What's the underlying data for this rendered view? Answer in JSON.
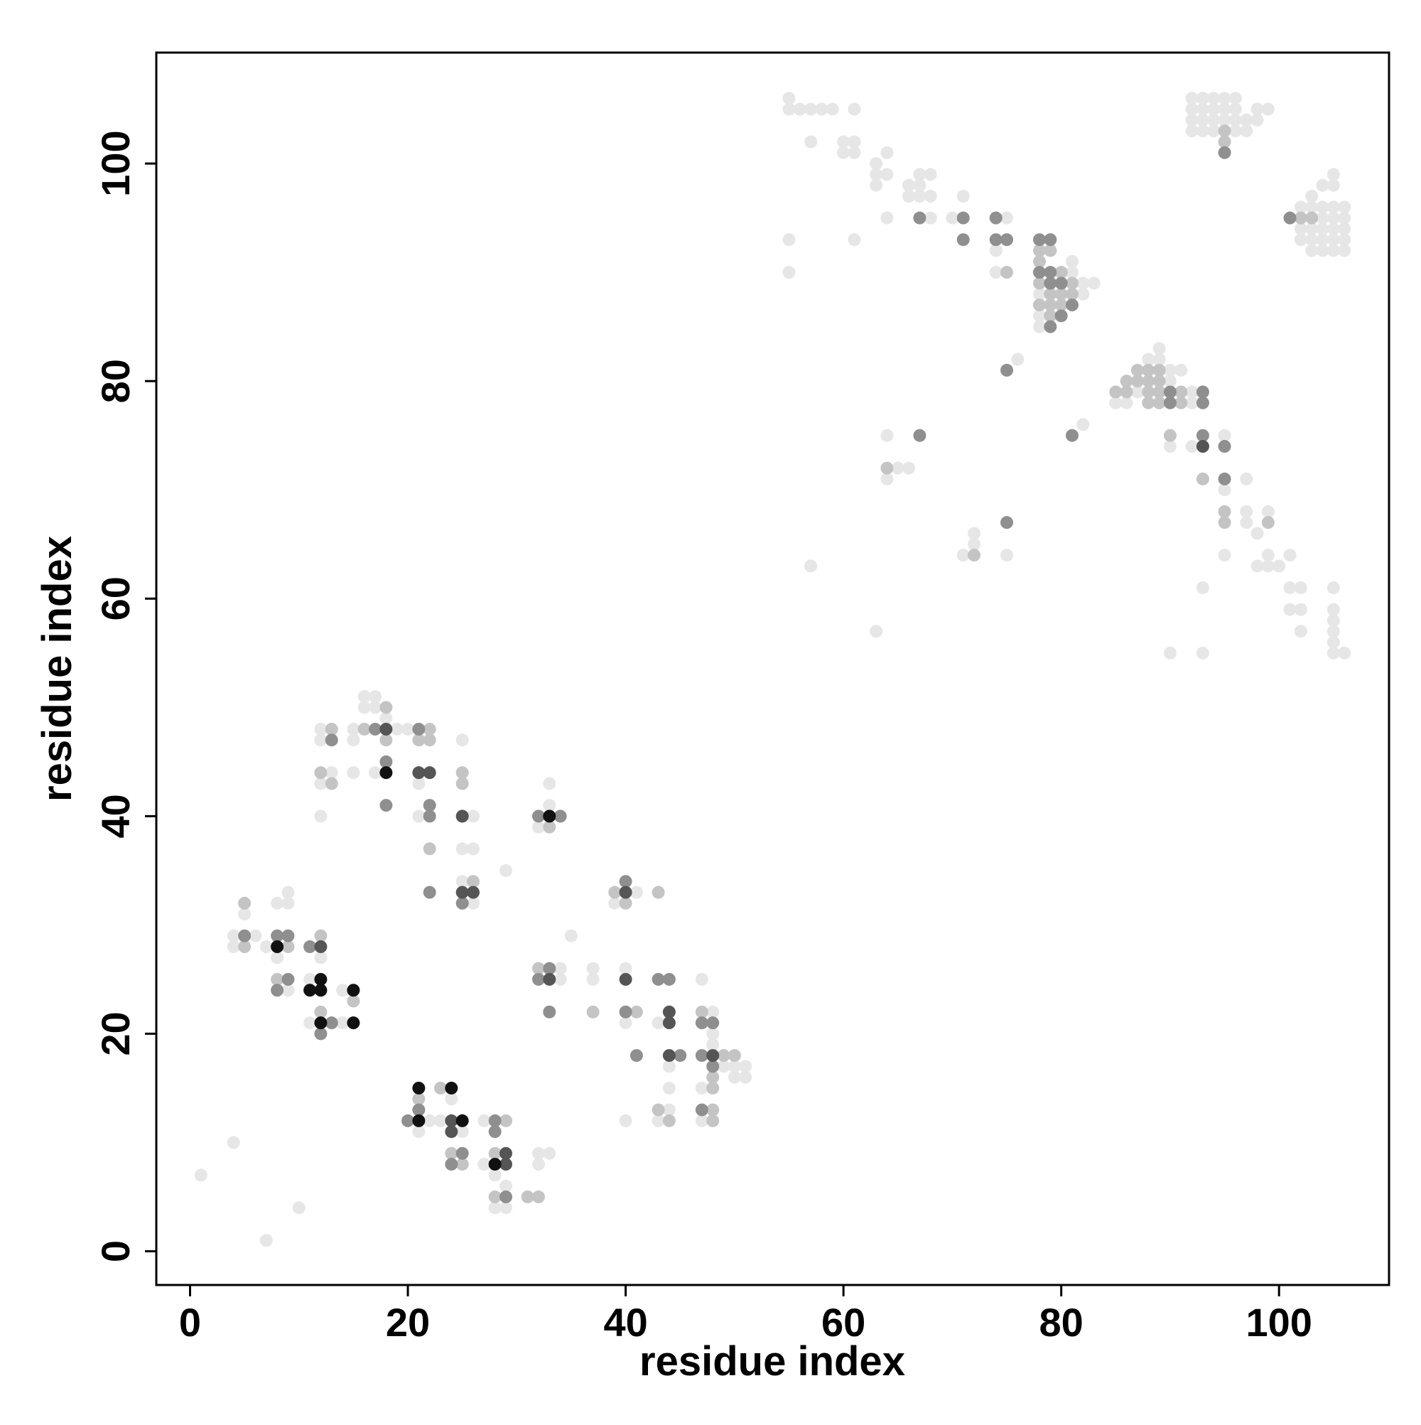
{
  "chart_data": {
    "type": "scatter",
    "x_label": "residue index",
    "y_label": "residue index",
    "xlim": [
      -3.1,
      110.1
    ],
    "ylim": [
      -3.1,
      110.2
    ],
    "xticks": [
      0,
      20,
      40,
      60,
      80,
      100
    ],
    "yticks": [
      0,
      20,
      40,
      60,
      80,
      100
    ],
    "series": [
      {
        "color": "#e6e6e6",
        "x": [
          1,
          4,
          7,
          10,
          4,
          4,
          5,
          6,
          7,
          8,
          8,
          9,
          9,
          9,
          11,
          11,
          12,
          14,
          14,
          12,
          12,
          12,
          12,
          13,
          15,
          15,
          15,
          16,
          16,
          17,
          17,
          17,
          18,
          19,
          20,
          21,
          21,
          25,
          25,
          25,
          26,
          26,
          26,
          29,
          32,
          33,
          33,
          34,
          34,
          35,
          37,
          37,
          39,
          41,
          40,
          40,
          40,
          43,
          43,
          44,
          44,
          44,
          47,
          47,
          47,
          48,
          48,
          48,
          49,
          50,
          50,
          51,
          51,
          21,
          22,
          23,
          24,
          25,
          27,
          27,
          28,
          28,
          29,
          29,
          32,
          32,
          33
        ],
        "values": [
          7,
          10,
          1,
          4,
          29,
          28,
          31,
          29,
          28,
          32,
          27,
          33,
          32,
          24,
          25,
          21,
          27,
          24,
          21,
          48,
          47,
          43,
          40,
          44,
          48,
          47,
          44,
          51,
          50,
          51,
          50,
          44,
          49,
          48,
          48,
          43,
          40,
          47,
          37,
          34,
          40,
          37,
          32,
          35,
          39,
          43,
          41,
          26,
          25,
          29,
          26,
          25,
          32,
          33,
          26,
          21,
          12,
          21,
          12,
          17,
          15,
          13,
          25,
          15,
          12,
          22,
          20,
          19,
          17,
          17,
          16,
          17,
          16,
          11,
          12,
          12,
          14,
          11,
          12,
          8,
          7,
          4,
          6,
          4,
          9,
          8,
          9
        ]
      },
      {
        "color": "#e6e6e6",
        "x": [
          55,
          55,
          56,
          57,
          58,
          59,
          61,
          57,
          60,
          60,
          61,
          61,
          55,
          55,
          61,
          63,
          63,
          63,
          64,
          64,
          64,
          66,
          66,
          67,
          67,
          67,
          68,
          68,
          68,
          70,
          71,
          74,
          74,
          75,
          78,
          78,
          78,
          81,
          81,
          82,
          82,
          83,
          76,
          85,
          86,
          87,
          88,
          89,
          89,
          90,
          90,
          91,
          92,
          92,
          82,
          64,
          64,
          65,
          66,
          71,
          72,
          72,
          75,
          57,
          63,
          90,
          92,
          95,
          95,
          95,
          97,
          97,
          97,
          98,
          99,
          98,
          99,
          99,
          100,
          101,
          93,
          90,
          93,
          101,
          102,
          101,
          102,
          102,
          105,
          105,
          105,
          105,
          105,
          105,
          106
        ],
        "values": [
          106,
          105,
          105,
          105,
          105,
          105,
          105,
          102,
          102,
          101,
          102,
          101,
          93,
          90,
          93,
          100,
          99,
          98,
          101,
          99,
          95,
          98,
          97,
          99,
          98,
          97,
          99,
          97,
          95,
          95,
          97,
          92,
          90,
          95,
          88,
          86,
          85,
          91,
          90,
          89,
          88,
          89,
          82,
          78,
          78,
          79,
          82,
          83,
          82,
          81,
          80,
          81,
          79,
          78,
          76,
          75,
          71,
          72,
          72,
          64,
          66,
          65,
          64,
          63,
          57,
          74,
          74,
          75,
          70,
          64,
          71,
          68,
          67,
          66,
          68,
          63,
          64,
          63,
          63,
          64,
          61,
          55,
          55,
          61,
          61,
          59,
          59,
          57,
          61,
          59,
          58,
          57,
          56,
          55,
          55
        ]
      },
      {
        "color": "#e6e6e6",
        "x": [
          92,
          92,
          92,
          92,
          93,
          93,
          93,
          93,
          94,
          94,
          94,
          94,
          95,
          95,
          95,
          96,
          96,
          96,
          96,
          97,
          97,
          98,
          98,
          99,
          103,
          103,
          103,
          103,
          104,
          104,
          104,
          104,
          104,
          105,
          105,
          105,
          105,
          105,
          106,
          106,
          106,
          106,
          106,
          102,
          102,
          102,
          103,
          104,
          105,
          105
        ],
        "values": [
          106,
          105,
          104,
          103,
          106,
          105,
          104,
          103,
          106,
          105,
          104,
          103,
          106,
          105,
          104,
          106,
          105,
          104,
          103,
          104,
          103,
          105,
          104,
          105,
          96,
          94,
          93,
          92,
          96,
          95,
          94,
          93,
          92,
          96,
          95,
          94,
          93,
          92,
          96,
          95,
          94,
          93,
          92,
          96,
          94,
          93,
          97,
          98,
          99,
          98
        ]
      },
      {
        "color": "#c4c4c4",
        "x": [
          5,
          5,
          8,
          9,
          12,
          12,
          15,
          12,
          13,
          13,
          16,
          18,
          18,
          21,
          22,
          22,
          22,
          25,
          25,
          26,
          33,
          32,
          37,
          39,
          40,
          41,
          43,
          43,
          44,
          47,
          48,
          48,
          48,
          48,
          49,
          50,
          21,
          23,
          24,
          25,
          28,
          28,
          29,
          31,
          32,
          75,
          78,
          78,
          78,
          78,
          79,
          79,
          79,
          79,
          80,
          80,
          80,
          81,
          81,
          85,
          86,
          86,
          87,
          87,
          88,
          88,
          88,
          88,
          89,
          89,
          89,
          89,
          91,
          91,
          64,
          72,
          90,
          93,
          95,
          95,
          99,
          95,
          95,
          102,
          103
        ],
        "values": [
          32,
          28,
          25,
          28,
          29,
          22,
          23,
          44,
          48,
          43,
          48,
          50,
          47,
          47,
          48,
          47,
          37,
          44,
          43,
          34,
          39,
          26,
          22,
          33,
          32,
          22,
          33,
          13,
          12,
          22,
          16,
          15,
          13,
          12,
          18,
          18,
          14,
          15,
          9,
          8,
          9,
          5,
          12,
          5,
          5,
          90,
          92,
          91,
          89,
          87,
          92,
          88,
          87,
          86,
          90,
          88,
          87,
          89,
          88,
          79,
          80,
          79,
          81,
          80,
          81,
          80,
          79,
          78,
          81,
          80,
          79,
          78,
          79,
          78,
          72,
          64,
          75,
          71,
          68,
          67,
          67,
          103,
          102,
          95,
          95
        ]
      },
      {
        "color": "#8f8f8f",
        "x": [
          5,
          8,
          8,
          9,
          9,
          11,
          12,
          13,
          13,
          17,
          18,
          18,
          21,
          22,
          22,
          22,
          25,
          32,
          34,
          32,
          33,
          33,
          40,
          40,
          41,
          43,
          44,
          45,
          47,
          47,
          47,
          48,
          48,
          20,
          21,
          24,
          25,
          28,
          28,
          29,
          67,
          71,
          71,
          74,
          74,
          75,
          78,
          78,
          79,
          79,
          79,
          79,
          80,
          80,
          81,
          90,
          90,
          93,
          93,
          81,
          75,
          67,
          75,
          93,
          95,
          95,
          95,
          101
        ],
        "values": [
          29,
          29,
          24,
          29,
          25,
          28,
          20,
          21,
          47,
          48,
          45,
          41,
          48,
          41,
          40,
          33,
          32,
          40,
          40,
          25,
          26,
          22,
          34,
          22,
          18,
          25,
          25,
          18,
          21,
          18,
          13,
          21,
          17,
          12,
          13,
          8,
          9,
          12,
          11,
          5,
          95,
          95,
          93,
          95,
          93,
          93,
          93,
          90,
          93,
          90,
          89,
          85,
          89,
          86,
          87,
          79,
          78,
          79,
          78,
          75,
          81,
          75,
          67,
          75,
          74,
          71,
          101,
          95
        ]
      },
      {
        "color": "#555555",
        "x": [
          12,
          18,
          21,
          22,
          25,
          25,
          26,
          33,
          40,
          40,
          44,
          44,
          44,
          48,
          24,
          24,
          29,
          29,
          93
        ],
        "values": [
          28,
          48,
          44,
          44,
          40,
          33,
          33,
          25,
          33,
          25,
          22,
          21,
          18,
          18,
          12,
          11,
          9,
          8,
          74
        ]
      },
      {
        "color": "#111111",
        "x": [
          8,
          11,
          12,
          12,
          12,
          15,
          15,
          18,
          33,
          21,
          21,
          24,
          25,
          28
        ],
        "values": [
          28,
          24,
          25,
          24,
          21,
          24,
          21,
          44,
          40,
          15,
          12,
          15,
          12,
          8
        ]
      }
    ]
  }
}
